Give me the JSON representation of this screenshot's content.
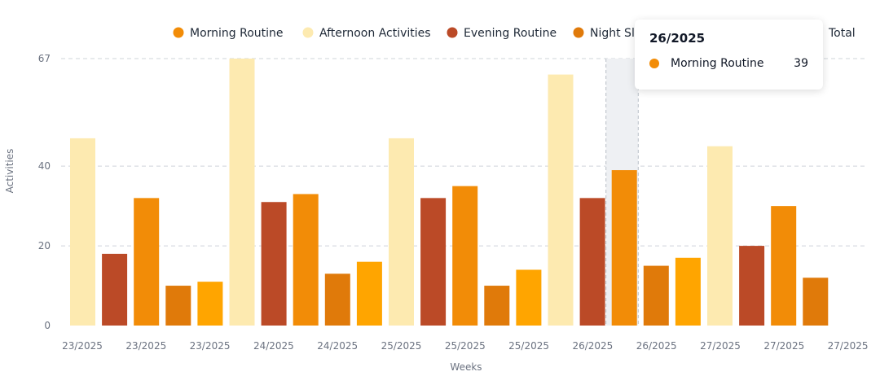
{
  "chart_data": {
    "type": "bar",
    "ylabel": "Activities",
    "xlabel": "Weeks",
    "ylim": [
      0,
      67
    ],
    "yticks": [
      0,
      20,
      40,
      67
    ],
    "grid": true,
    "legend_position": "top-center",
    "series_meta": [
      {
        "name": "Morning Routine",
        "color": "#f28c07"
      },
      {
        "name": "Afternoon Activities",
        "color": "#fdeab0"
      },
      {
        "name": "Evening Routine",
        "color": "#bb4a27"
      },
      {
        "name": "Night Sl",
        "color": "#e07a0a"
      },
      {
        "name": "",
        "color": "#ffa500"
      },
      {
        "name": "Total",
        "color": ""
      }
    ],
    "x_tick_labels": [
      "23/2025",
      "23/2025",
      "23/2025",
      "24/2025",
      "24/2025",
      "25/2025",
      "25/2025",
      "25/2025",
      "26/2025",
      "26/2025",
      "27/2025",
      "27/2025",
      "27/2025"
    ],
    "bars": [
      {
        "series": 1,
        "value": 47
      },
      {
        "series": 2,
        "value": 18
      },
      {
        "series": 0,
        "value": 32
      },
      {
        "series": 3,
        "value": 10
      },
      {
        "series": 4,
        "value": 11
      },
      {
        "series": 1,
        "value": 67
      },
      {
        "series": 2,
        "value": 31
      },
      {
        "series": 0,
        "value": 33
      },
      {
        "series": 3,
        "value": 13
      },
      {
        "series": 4,
        "value": 16
      },
      {
        "series": 1,
        "value": 47
      },
      {
        "series": 2,
        "value": 32
      },
      {
        "series": 0,
        "value": 35
      },
      {
        "series": 3,
        "value": 10
      },
      {
        "series": 4,
        "value": 14
      },
      {
        "series": 1,
        "value": 63
      },
      {
        "series": 2,
        "value": 32
      },
      {
        "series": 0,
        "value": 39
      },
      {
        "series": 3,
        "value": 15
      },
      {
        "series": 4,
        "value": 17
      },
      {
        "series": 1,
        "value": 45
      },
      {
        "series": 2,
        "value": 20
      },
      {
        "series": 0,
        "value": 30
      },
      {
        "series": 3,
        "value": 12
      }
    ],
    "highlight_index": 17,
    "tooltip": {
      "title": "26/2025",
      "series_name": "Morning Routine",
      "value": "39",
      "color": "#f28c07"
    }
  }
}
